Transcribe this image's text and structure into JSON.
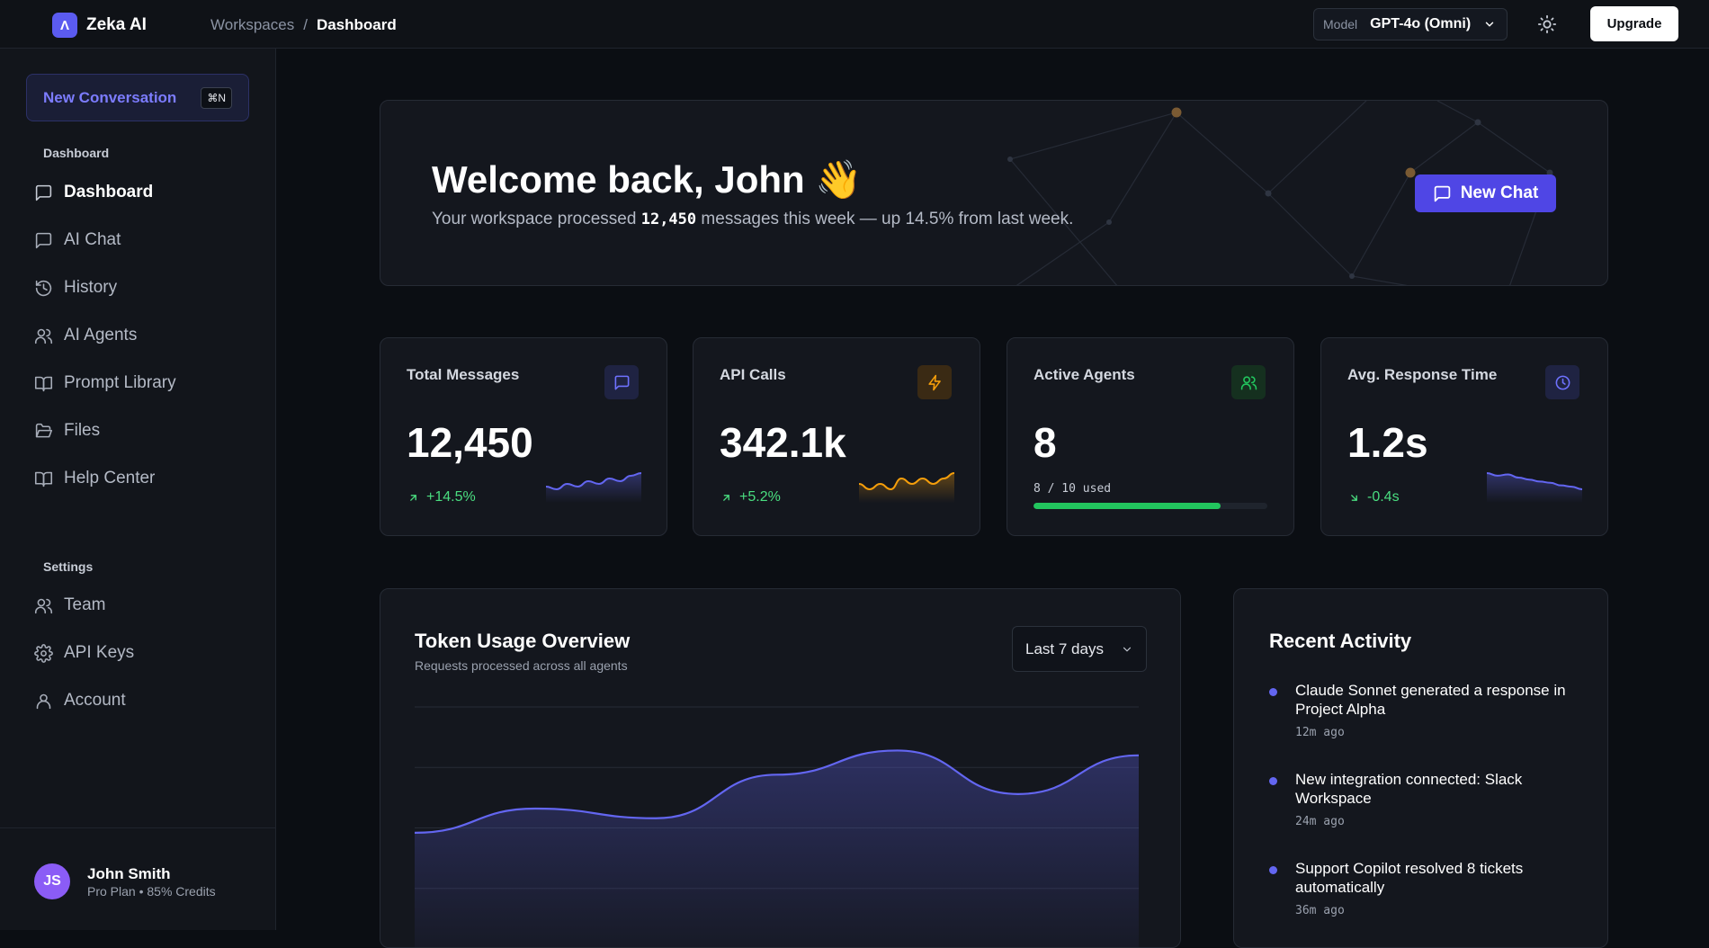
{
  "app": {
    "logo_glyph": "Λ",
    "name": "Zeka AI"
  },
  "breadcrumb": {
    "parent": "Workspaces",
    "separator": "/",
    "current": "Dashboard"
  },
  "topbar": {
    "model_label": "Model",
    "model_value": "GPT-4o (Omni)",
    "upgrade_label": "Upgrade"
  },
  "sidebar": {
    "new_conversation_label": "New Conversation",
    "new_conversation_shortcut": "⌘N",
    "dashboard_section": "Dashboard",
    "items": [
      {
        "label": "Dashboard",
        "icon": "message-square-icon",
        "active": true
      },
      {
        "label": "AI Chat",
        "icon": "message-square-icon",
        "active": false
      },
      {
        "label": "History",
        "icon": "history-icon",
        "active": false
      },
      {
        "label": "AI Agents",
        "icon": "users-icon",
        "active": false
      },
      {
        "label": "Prompt Library",
        "icon": "book-open-icon",
        "active": false
      },
      {
        "label": "Files",
        "icon": "folder-open-icon",
        "active": false
      },
      {
        "label": "Help Center",
        "icon": "book-open-icon",
        "active": false
      }
    ],
    "settings_section": "Settings",
    "settings_items": [
      {
        "label": "Team",
        "icon": "users-icon"
      },
      {
        "label": "API Keys",
        "icon": "gear-icon"
      },
      {
        "label": "Account",
        "icon": "user-icon"
      }
    ],
    "user": {
      "initials": "JS",
      "name": "John Smith",
      "plan": "Pro Plan • 85% Credits"
    }
  },
  "hero": {
    "title": "Welcome back, John 👋",
    "subtitle_before": "Your workspace processed",
    "subtitle_number": "12,450",
    "subtitle_after": "messages this week — up 14.5% from last week.",
    "button_label": "New Chat"
  },
  "stats": [
    {
      "label": "Total Messages",
      "value": "12,450",
      "change": "+14.5%",
      "direction": "up",
      "icon": "message-square-icon",
      "accent": "#6366f1",
      "spark": [
        4,
        3,
        5,
        4,
        6,
        5,
        7,
        6,
        8,
        9
      ]
    },
    {
      "label": "API Calls",
      "value": "342.1k",
      "change": "+5.2%",
      "direction": "up",
      "icon": "zap-icon",
      "accent": "#f59e0b",
      "spark": [
        6,
        5,
        6,
        5,
        7,
        6,
        7,
        6,
        7,
        8
      ]
    },
    {
      "label": "Active Agents",
      "value": "8",
      "usage_text": "8 / 10 used",
      "usage_fraction": 0.8,
      "icon": "users-icon",
      "accent": "#22c55e"
    },
    {
      "label": "Avg. Response Time",
      "value": "1.2s",
      "change": "-0.4s",
      "direction": "down",
      "icon": "clock-icon",
      "accent": "#6366f1",
      "spark": [
        9,
        8.6,
        8.8,
        8.3,
        8,
        7.7,
        7.5,
        7.1,
        6.9,
        6.5
      ]
    }
  ],
  "chart": {
    "title": "Token Usage Overview",
    "subtitle": "Requests processed across all agents",
    "range_label": "Last 7 days",
    "accent": "#6366f1"
  },
  "chart_data": {
    "type": "area",
    "x": [
      1,
      2,
      3,
      4,
      5,
      6,
      7
    ],
    "values": [
      48,
      58,
      54,
      72,
      82,
      64,
      80
    ],
    "ylim": [
      0,
      100
    ],
    "grid": true,
    "title": "Token Usage Overview",
    "xlabel": "",
    "ylabel": ""
  },
  "activity": {
    "title": "Recent Activity",
    "items": [
      {
        "text": "Claude Sonnet generated a response in Project Alpha",
        "time": "12m ago"
      },
      {
        "text": "New integration connected: Slack Workspace",
        "time": "24m ago"
      },
      {
        "text": "Support Copilot resolved 8 tickets automatically",
        "time": "36m ago"
      }
    ]
  }
}
